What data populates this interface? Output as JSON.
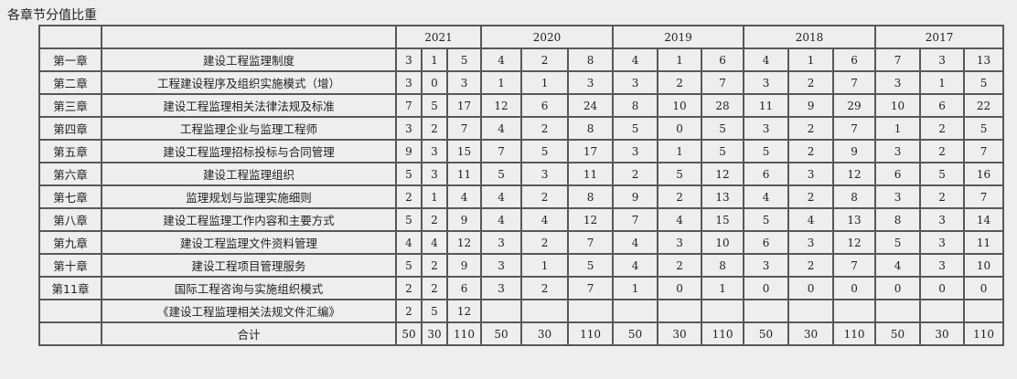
{
  "caption": "各章节分值比重",
  "years": [
    "2021",
    "2020",
    "2019",
    "2018",
    "2017"
  ],
  "rows": [
    {
      "chapter": "第一章",
      "name": "建设工程监理制度",
      "values": [
        "3",
        "1",
        "5",
        "4",
        "2",
        "8",
        "4",
        "1",
        "6",
        "4",
        "1",
        "6",
        "7",
        "3",
        "13"
      ]
    },
    {
      "chapter": "第二章",
      "name": "工程建设程序及组织实施模式（增）",
      "values": [
        "3",
        "0",
        "3",
        "1",
        "1",
        "3",
        "3",
        "2",
        "7",
        "3",
        "2",
        "7",
        "3",
        "1",
        "5"
      ]
    },
    {
      "chapter": "第三章",
      "name": "建设工程监理相关法律法规及标准",
      "values": [
        "7",
        "5",
        "17",
        "12",
        "6",
        "24",
        "8",
        "10",
        "28",
        "11",
        "9",
        "29",
        "10",
        "6",
        "22"
      ]
    },
    {
      "chapter": "第四章",
      "name": "工程监理企业与监理工程师",
      "values": [
        "3",
        "2",
        "7",
        "4",
        "2",
        "8",
        "5",
        "0",
        "5",
        "3",
        "2",
        "7",
        "1",
        "2",
        "5"
      ]
    },
    {
      "chapter": "第五章",
      "name": "建设工程监理招标投标与合同管理",
      "values": [
        "9",
        "3",
        "15",
        "7",
        "5",
        "17",
        "3",
        "1",
        "5",
        "5",
        "2",
        "9",
        "3",
        "2",
        "7"
      ]
    },
    {
      "chapter": "第六章",
      "name": "建设工程监理组织",
      "values": [
        "5",
        "3",
        "11",
        "5",
        "3",
        "11",
        "2",
        "5",
        "12",
        "6",
        "3",
        "12",
        "6",
        "5",
        "16"
      ]
    },
    {
      "chapter": "第七章",
      "name": "监理规划与监理实施细则",
      "values": [
        "2",
        "1",
        "4",
        "4",
        "2",
        "8",
        "9",
        "2",
        "13",
        "4",
        "2",
        "8",
        "3",
        "2",
        "7"
      ]
    },
    {
      "chapter": "第八章",
      "name": "建设工程监理工作内容和主要方式",
      "values": [
        "5",
        "2",
        "9",
        "4",
        "4",
        "12",
        "7",
        "4",
        "15",
        "5",
        "4",
        "13",
        "8",
        "3",
        "14"
      ]
    },
    {
      "chapter": "第九章",
      "name": "建设工程监理文件资料管理",
      "values": [
        "4",
        "4",
        "12",
        "3",
        "2",
        "7",
        "4",
        "3",
        "10",
        "6",
        "3",
        "12",
        "5",
        "3",
        "11"
      ]
    },
    {
      "chapter": "第十章",
      "name": "建设工程项目管理服务",
      "values": [
        "5",
        "2",
        "9",
        "3",
        "1",
        "5",
        "4",
        "2",
        "8",
        "3",
        "2",
        "7",
        "4",
        "3",
        "10"
      ]
    },
    {
      "chapter": "第11章",
      "name": "国际工程咨询与实施组织模式",
      "values": [
        "2",
        "2",
        "6",
        "3",
        "2",
        "7",
        "1",
        "0",
        "1",
        "0",
        "0",
        "0",
        "0",
        "0",
        "0"
      ]
    },
    {
      "chapter": "",
      "name": "《建设工程监理相关法规文件汇编》",
      "values": [
        "2",
        "5",
        "12",
        "",
        "",
        "",
        "",
        "",
        "",
        "",
        "",
        "",
        "",
        "",
        ""
      ]
    },
    {
      "chapter": "",
      "name": "合计",
      "values": [
        "50",
        "30",
        "110",
        "50",
        "30",
        "110",
        "50",
        "30",
        "110",
        "50",
        "30",
        "110",
        "50",
        "30",
        "110"
      ]
    }
  ]
}
